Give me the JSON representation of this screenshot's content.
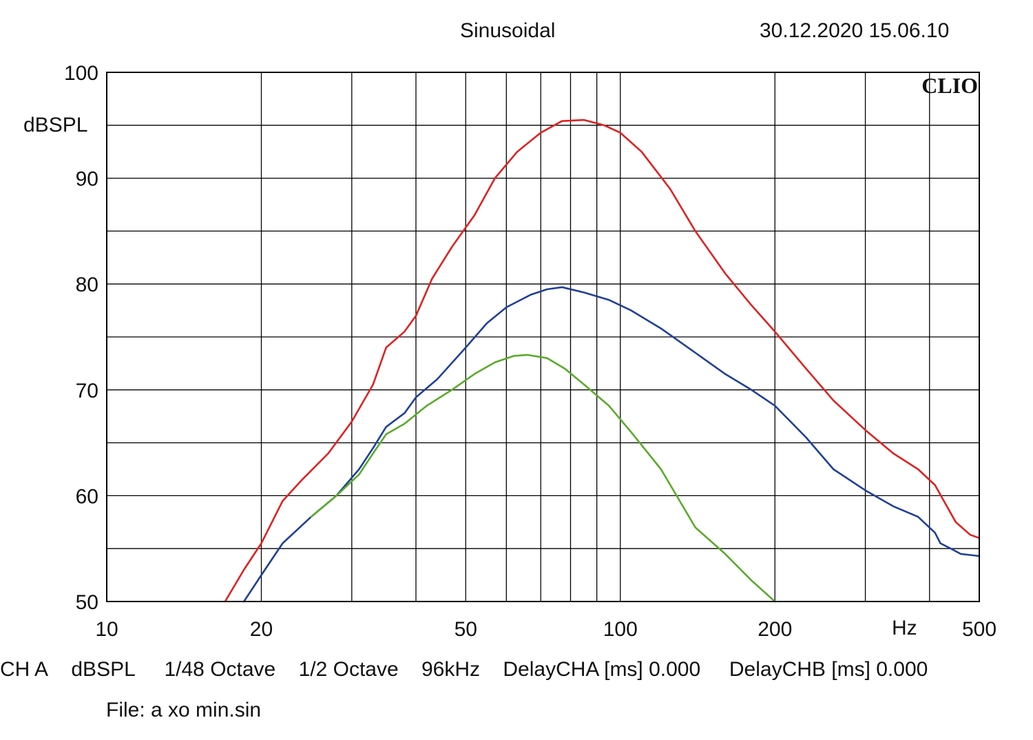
{
  "header": {
    "title": "Sinusoidal",
    "datetime": "30.12.2020 15.06.10"
  },
  "footer": {
    "channel": "CH A",
    "unit": "dBSPL",
    "resolution": "1/48 Octave",
    "smoothing": "1/2 Octave",
    "rate": "96kHz",
    "delay_a": "DelayCHA [ms] 0.000",
    "delay_b": "DelayCHB [ms] 0.000",
    "file": "File: a xo min.sin"
  },
  "chart_data": {
    "type": "line",
    "brand": "CLIO",
    "ylabel": "dBSPL",
    "xunit": "Hz",
    "xscale": "log",
    "xlim": [
      10,
      500
    ],
    "ylim": [
      50,
      100
    ],
    "grid": true,
    "x_ticks": [
      10,
      20,
      50,
      100,
      200,
      500
    ],
    "x_tick_labels": [
      "10",
      "20",
      "50",
      "100",
      "200",
      "500"
    ],
    "y_ticks": [
      50,
      60,
      70,
      80,
      90,
      100
    ],
    "y_tick_labels": [
      "50",
      "60",
      "70",
      "80",
      "90",
      "100"
    ],
    "series": [
      {
        "color": "#e02020",
        "x": [
          17,
          18.5,
          20,
          22,
          24,
          27,
          30,
          33,
          35,
          38,
          40,
          43,
          47,
          52,
          57,
          63,
          70,
          77,
          85,
          93,
          100,
          110,
          125,
          140,
          160,
          180,
          200,
          230,
          260,
          300,
          340,
          380,
          410,
          430,
          450,
          480,
          500
        ],
        "y": [
          50,
          53,
          55.5,
          59.5,
          61.5,
          64,
          67,
          70.5,
          74,
          75.5,
          77,
          80.5,
          83.5,
          86.5,
          90,
          92.5,
          94.3,
          95.4,
          95.5,
          95,
          94.3,
          92.5,
          89,
          85,
          81,
          78,
          75.5,
          72,
          69,
          66.2,
          64,
          62.5,
          61,
          59.2,
          57.5,
          56.3,
          56
        ]
      },
      {
        "color": "#1f3f99",
        "x": [
          18.5,
          20,
          22,
          25,
          28,
          31,
          33,
          35,
          38,
          40,
          44,
          50,
          55,
          60,
          67,
          72,
          77,
          85,
          95,
          105,
          120,
          140,
          160,
          180,
          200,
          230,
          260,
          300,
          340,
          380,
          410,
          420,
          440,
          460,
          500
        ],
        "y": [
          50,
          52.5,
          55.5,
          58,
          60,
          62.5,
          64.5,
          66.5,
          67.8,
          69.3,
          71,
          74,
          76.3,
          77.8,
          79,
          79.5,
          79.7,
          79.2,
          78.5,
          77.5,
          75.8,
          73.5,
          71.5,
          70,
          68.5,
          65.5,
          62.5,
          60.5,
          59,
          58,
          56.5,
          55.5,
          55,
          54.5,
          54.3
        ]
      },
      {
        "color": "#5aaa2a",
        "x": [
          25,
          28,
          31,
          33,
          35,
          38,
          42,
          47,
          52,
          57,
          62,
          66,
          72,
          78,
          85,
          95,
          105,
          120,
          140,
          160,
          180,
          200
        ],
        "y": [
          58,
          60,
          62,
          64,
          65.8,
          66.8,
          68.5,
          70,
          71.5,
          72.6,
          73.2,
          73.3,
          73,
          72,
          70.5,
          68.5,
          66,
          62.5,
          57,
          54.5,
          52,
          50
        ]
      }
    ]
  }
}
